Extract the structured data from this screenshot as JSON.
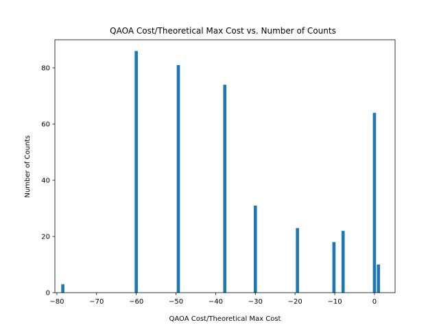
{
  "chart_data": {
    "type": "bar",
    "title": "QAOA Cost/Theoretical Max Cost vs. Number of Counts",
    "xlabel": "QAOA Cost/Theoretical Max Cost",
    "ylabel": "Number of Counts",
    "xlim": [
      -80.5,
      5.2
    ],
    "ylim": [
      0,
      90
    ],
    "xticks": [
      -80,
      -70,
      -60,
      -50,
      -40,
      -30,
      -20,
      -10,
      0
    ],
    "xtick_labels": [
      "−80",
      "−70",
      "−60",
      "−50",
      "−40",
      "−30",
      "−20",
      "−10",
      "0"
    ],
    "yticks": [
      0,
      20,
      40,
      60,
      80
    ],
    "ytick_labels": [
      "0",
      "20",
      "40",
      "60",
      "80"
    ],
    "bar_width": 0.8,
    "bar_color": "#1f77b4",
    "grid": false,
    "legend": "none",
    "bars": [
      {
        "x": -78.5,
        "y": 3
      },
      {
        "x": -60.0,
        "y": 86
      },
      {
        "x": -49.4,
        "y": 81
      },
      {
        "x": -37.7,
        "y": 74
      },
      {
        "x": -30.0,
        "y": 31
      },
      {
        "x": -19.4,
        "y": 23
      },
      {
        "x": -10.2,
        "y": 18
      },
      {
        "x": -7.9,
        "y": 22
      },
      {
        "x": 0.0,
        "y": 64
      },
      {
        "x": 1.0,
        "y": 10
      }
    ]
  }
}
